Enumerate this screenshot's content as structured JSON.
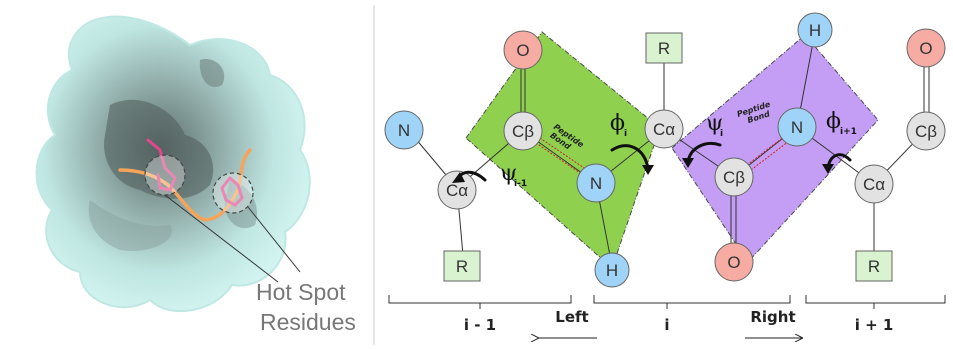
{
  "left_panel": {
    "hotspot_label_line1": "Hot Spot",
    "hotspot_label_line2": "Residues"
  },
  "diagram": {
    "atoms": {
      "n_left": "N",
      "ca_left": "Cα",
      "r_left": "R",
      "o_top_left": "O",
      "cb_green": "Cβ",
      "n_green": "N",
      "h_green": "H",
      "r_mid": "R",
      "ca_mid": "Cα",
      "cb_purple": "Cβ",
      "o_bottom_purple": "O",
      "h_top": "H",
      "n_purple": "N",
      "ca_right": "Cα",
      "r_right": "R",
      "o_right": "O",
      "cb_right": "Cβ"
    },
    "peptide_bond_green": [
      "Peptide",
      "Bond"
    ],
    "peptide_bond_purple": [
      "Peptide",
      "Bond"
    ],
    "angles": {
      "psi_im1": {
        "symbol": "ψ",
        "sub": "i-1"
      },
      "phi_i": {
        "symbol": "ϕ",
        "sub": "i"
      },
      "psi_i": {
        "symbol": "ψ",
        "sub": "i"
      },
      "phi_ip1": {
        "symbol": "ϕ",
        "sub": "i+1"
      }
    },
    "brackets": {
      "left": "i - 1",
      "mid": "i",
      "right": "i + 1"
    },
    "direction_left": "Left",
    "direction_right": "Right",
    "colors": {
      "green_plane": "#8fd14f",
      "purple_plane": "#c49ef5",
      "oxygen": "#f7aca3",
      "nitrogen": "#9fd3f7",
      "carbon": "#e2e2e2",
      "r_group": "#d9f2cf",
      "surface": "#c8f2ee"
    }
  }
}
